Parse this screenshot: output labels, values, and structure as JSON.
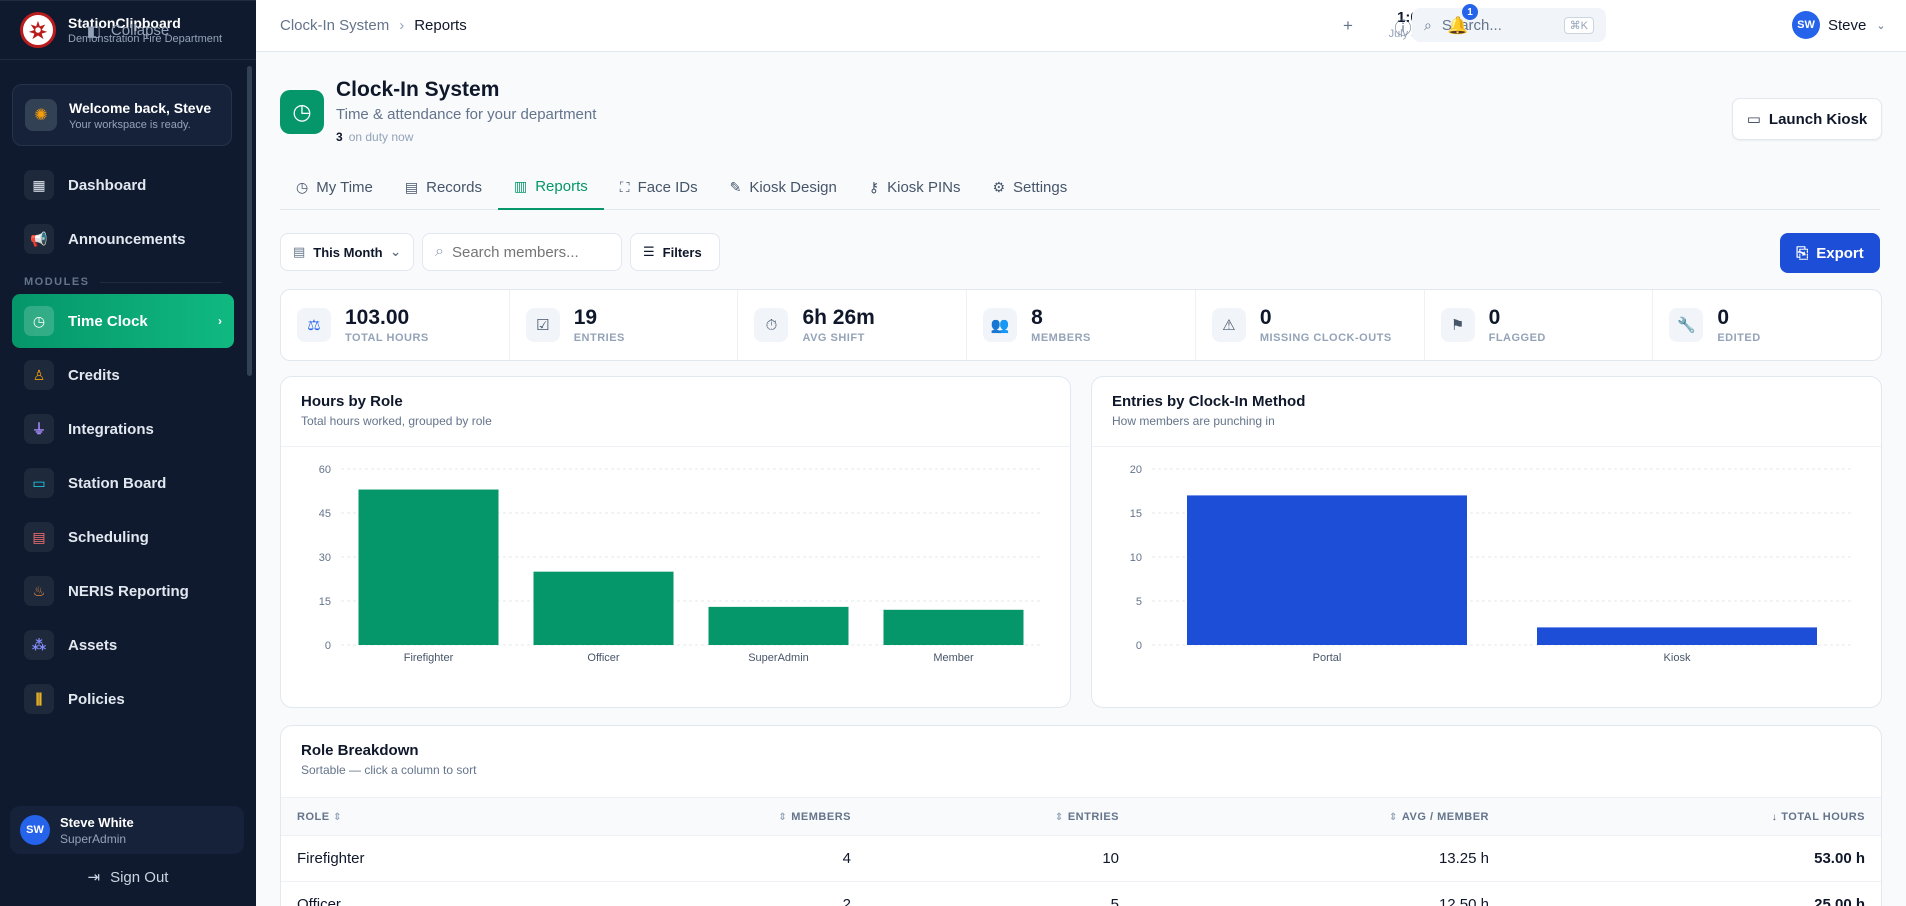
{
  "brand": {
    "name": "StationClipboard",
    "subtitle": "Demonstration Fire Department"
  },
  "welcome": {
    "title": "Welcome back, Steve",
    "subtitle": "Your workspace is ready."
  },
  "nav": {
    "items_top": [
      {
        "label": "Dashboard",
        "icon": "dashboard-icon"
      },
      {
        "label": "Announcements",
        "icon": "megaphone-icon"
      }
    ],
    "section_label": "MODULES",
    "items_modules": [
      {
        "label": "Time Clock",
        "icon": "clock-icon",
        "active": true
      },
      {
        "label": "Credits",
        "icon": "award-icon"
      },
      {
        "label": "Integrations",
        "icon": "plug-icon"
      },
      {
        "label": "Station Board",
        "icon": "monitor-icon"
      },
      {
        "label": "Scheduling",
        "icon": "calendar-icon"
      },
      {
        "label": "NERIS Reporting",
        "icon": "flame-icon"
      },
      {
        "label": "Assets",
        "icon": "boxes-icon"
      },
      {
        "label": "Policies",
        "icon": "library-icon"
      }
    ],
    "collapse_label": "Collapse",
    "signout_label": "Sign Out"
  },
  "user": {
    "initials": "SW",
    "name": "Steve White",
    "role": "SuperAdmin",
    "first_name": "Steve"
  },
  "topbar": {
    "breadcrumb": [
      "Clock-In System",
      "Reports"
    ],
    "time": "1:02 AM",
    "date": "July 30, 2026",
    "search_placeholder": "Search...",
    "search_shortcut": "⌘K",
    "notification_count": "1"
  },
  "header": {
    "title": "Clock-In System",
    "subtitle": "Time & attendance for your department",
    "on_duty_count": "3",
    "on_duty_label": "on duty now",
    "kiosk_button": "Launch Kiosk"
  },
  "tabs": [
    {
      "label": "My Time",
      "icon": "clock-icon"
    },
    {
      "label": "Records",
      "icon": "clipboard-icon"
    },
    {
      "label": "Reports",
      "icon": "bar-chart-icon",
      "active": true
    },
    {
      "label": "Face IDs",
      "icon": "face-scan-icon"
    },
    {
      "label": "Kiosk Design",
      "icon": "brush-icon"
    },
    {
      "label": "Kiosk PINs",
      "icon": "key-icon"
    },
    {
      "label": "Settings",
      "icon": "gear-icon"
    }
  ],
  "toolbar": {
    "period": "This Month",
    "search_placeholder": "Search members...",
    "filters": "Filters",
    "export": "Export"
  },
  "stats": [
    {
      "value": "103.00",
      "label": "TOTAL HOURS",
      "icon": "scale-icon"
    },
    {
      "value": "19",
      "label": "ENTRIES",
      "icon": "list-check-icon"
    },
    {
      "value": "6h 26m",
      "label": "AVG SHIFT",
      "icon": "timer-icon"
    },
    {
      "value": "8",
      "label": "MEMBERS",
      "icon": "users-icon"
    },
    {
      "value": "0",
      "label": "MISSING CLOCK-OUTS",
      "icon": "warning-icon"
    },
    {
      "value": "0",
      "label": "FLAGGED",
      "icon": "flag-icon"
    },
    {
      "value": "0",
      "label": "EDITED",
      "icon": "wrench-icon"
    }
  ],
  "chart_data": [
    {
      "type": "bar",
      "title": "Hours by Role",
      "subtitle": "Total hours worked, grouped by role",
      "categories": [
        "Firefighter",
        "Officer",
        "SuperAdmin",
        "Member"
      ],
      "values": [
        53,
        25,
        13,
        12
      ],
      "yticks": [
        0,
        15,
        30,
        45,
        60
      ],
      "ylim": [
        0,
        60
      ],
      "color": "#059669"
    },
    {
      "type": "bar",
      "title": "Entries by Clock-In Method",
      "subtitle": "How members are punching in",
      "categories": [
        "Portal",
        "Kiosk"
      ],
      "values": [
        17,
        2
      ],
      "yticks": [
        0,
        5,
        10,
        15,
        20
      ],
      "ylim": [
        0,
        20
      ],
      "color": "#1d4ed8"
    }
  ],
  "breakdown": {
    "title": "Role Breakdown",
    "subtitle": "Sortable — click a column to sort",
    "columns": [
      "ROLE",
      "MEMBERS",
      "ENTRIES",
      "AVG / MEMBER",
      "TOTAL HOURS"
    ],
    "rows": [
      {
        "role": "Firefighter",
        "members": "4",
        "entries": "10",
        "avg": "13.25 h",
        "total": "53.00 h"
      },
      {
        "role": "Officer",
        "members": "2",
        "entries": "5",
        "avg": "12.50 h",
        "total": "25.00 h"
      }
    ]
  }
}
